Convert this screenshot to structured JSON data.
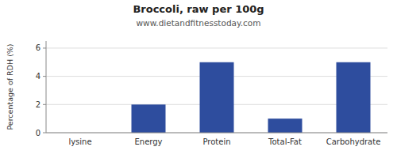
{
  "chart_data": {
    "type": "bar",
    "title": "Broccoli, raw per 100g",
    "subtitle": "www.dietandfitnesstoday.com",
    "categories": [
      "lysine",
      "Energy",
      "Protein",
      "Total-Fat",
      "Carbohydrate"
    ],
    "values": [
      0,
      2,
      5,
      1,
      5
    ],
    "color": "#2e4d9e",
    "ylabel": "Percentage of RDH (%)",
    "ylim": [
      0,
      6.5
    ],
    "yticks": [
      0,
      2,
      4,
      6
    ],
    "grid": true
  }
}
